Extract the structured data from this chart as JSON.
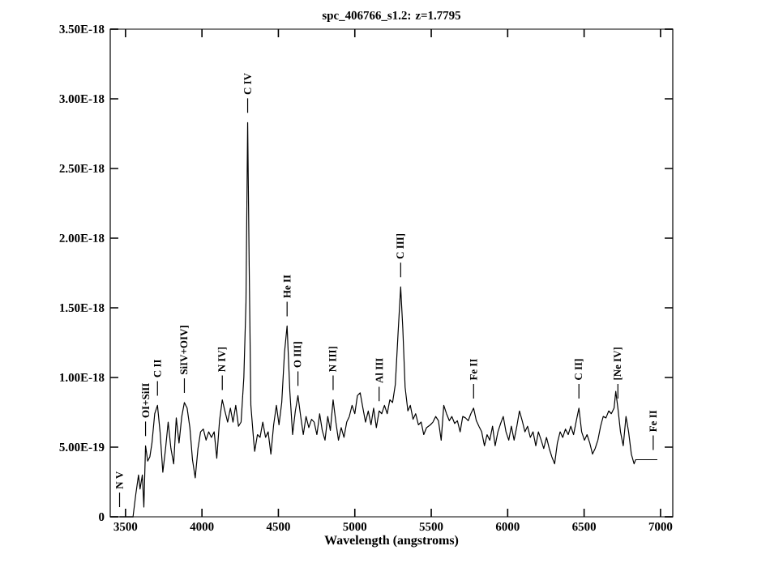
{
  "chart_data": {
    "type": "line",
    "title": "spc_406766_s1.2: z=1.7795",
    "xlabel": "Wavelength (angstroms)",
    "xlim": [
      3400,
      7080
    ],
    "ylim": [
      0,
      3.5e-18
    ],
    "xticks": [
      3500,
      4000,
      4500,
      5000,
      5500,
      6000,
      6500,
      7000
    ],
    "yticks": [
      0,
      {
        "value": 5e-19,
        "label": "5.00E-19"
      },
      {
        "value": 1e-18,
        "label": "1.00E-18"
      },
      {
        "value": 1.5e-18,
        "label": "1.50E-18"
      },
      {
        "value": 2e-18,
        "label": "2.00E-18"
      },
      {
        "value": 2.5e-18,
        "label": "2.50E-18"
      },
      {
        "value": 3e-18,
        "label": "3.00E-18"
      },
      {
        "value": 3.5e-18,
        "label": "3.50E-18"
      }
    ],
    "grid": false,
    "series": [
      {
        "color": "#000000",
        "x": [
          3461,
          3549,
          3567,
          3585,
          3595,
          3610,
          3620,
          3631,
          3645,
          3659,
          3673,
          3691,
          3709,
          3726,
          3744,
          3762,
          3779,
          3797,
          3815,
          3832,
          3850,
          3868,
          3885,
          3903,
          3921,
          3938,
          3956,
          3974,
          3991,
          4009,
          4027,
          4044,
          4062,
          4080,
          4097,
          4115,
          4133,
          4150,
          4168,
          4186,
          4203,
          4221,
          4239,
          4256,
          4274,
          4288,
          4299,
          4309,
          4320,
          4338,
          4345,
          4363,
          4380,
          4398,
          4416,
          4433,
          4451,
          4469,
          4487,
          4504,
          4522,
          4540,
          4557,
          4575,
          4593,
          4611,
          4628,
          4646,
          4663,
          4681,
          4699,
          4717,
          4734,
          4752,
          4770,
          4787,
          4805,
          4823,
          4840,
          4858,
          4876,
          4893,
          4911,
          4929,
          4947,
          4964,
          4982,
          5000,
          5017,
          5035,
          5053,
          5070,
          5088,
          5106,
          5123,
          5141,
          5159,
          5176,
          5194,
          5212,
          5229,
          5247,
          5265,
          5283,
          5300,
          5314,
          5329,
          5347,
          5363,
          5381,
          5398,
          5416,
          5434,
          5451,
          5469,
          5494,
          5511,
          5529,
          5547,
          5565,
          5582,
          5600,
          5618,
          5635,
          5653,
          5671,
          5689,
          5706,
          5724,
          5742,
          5759,
          5777,
          5795,
          5812,
          5830,
          5848,
          5865,
          5883,
          5901,
          5918,
          5936,
          5954,
          5971,
          5989,
          6007,
          6024,
          6042,
          6060,
          6077,
          6095,
          6113,
          6130,
          6148,
          6166,
          6184,
          6201,
          6219,
          6236,
          6254,
          6272,
          6289,
          6307,
          6325,
          6343,
          6360,
          6378,
          6396,
          6413,
          6431,
          6449,
          6466,
          6484,
          6502,
          6519,
          6537,
          6555,
          6572,
          6590,
          6608,
          6625,
          6643,
          6661,
          6678,
          6696,
          6707,
          6721,
          6738,
          6756,
          6774,
          6791,
          6809,
          6827,
          6837,
          6855,
          6979
        ],
        "values": [
          0,
          0,
          1.6e-19,
          3e-19,
          2e-19,
          3e-19,
          7e-20,
          5.1e-19,
          4e-19,
          4.3e-19,
          5.3e-19,
          7.4e-19,
          8e-19,
          6.1e-19,
          3.2e-19,
          4.9e-19,
          6.8e-19,
          4.9e-19,
          3.8e-19,
          7.1e-19,
          5.3e-19,
          7.2e-19,
          8.2e-19,
          7.8e-19,
          6.4e-19,
          4.1e-19,
          2.8e-19,
          4.9e-19,
          6.1e-19,
          6.3e-19,
          5.5e-19,
          6.1e-19,
          5.7e-19,
          6.1e-19,
          4.2e-19,
          6.9e-19,
          8.4e-19,
          7.6e-19,
          6.8e-19,
          7.8e-19,
          6.8e-19,
          8e-19,
          6.5e-19,
          6.8e-19,
          1e-18,
          1.54e-18,
          2.83e-18,
          1.8e-18,
          8e-19,
          5.5e-19,
          4.7e-19,
          5.9e-19,
          5.7e-19,
          6.8e-19,
          5.7e-19,
          6.1e-19,
          4.5e-19,
          6.6e-19,
          8e-19,
          6.6e-19,
          8.2e-19,
          1.18e-18,
          1.37e-18,
          9e-19,
          5.9e-19,
          7.6e-19,
          8.7e-19,
          7.2e-19,
          5.9e-19,
          7.2e-19,
          6.4e-19,
          7e-19,
          6.8e-19,
          5.9e-19,
          7.4e-19,
          6.2e-19,
          5.5e-19,
          7.2e-19,
          6.2e-19,
          8.4e-19,
          6.8e-19,
          5.5e-19,
          6.4e-19,
          5.7e-19,
          6.8e-19,
          7.2e-19,
          8e-19,
          7.4e-19,
          8.7e-19,
          8.9e-19,
          7.8e-19,
          6.8e-19,
          7.6e-19,
          6.6e-19,
          7.8e-19,
          6.4e-19,
          7.6e-19,
          7.4e-19,
          8e-19,
          7.4e-19,
          8.4e-19,
          8.2e-19,
          9.5e-19,
          1.32e-18,
          1.65e-18,
          1.35e-18,
          9.3e-19,
          7.6e-19,
          8e-19,
          7e-19,
          7.4e-19,
          6.6e-19,
          6.8e-19,
          5.9e-19,
          6.4e-19,
          6.6e-19,
          6.8e-19,
          7.2e-19,
          6.9e-19,
          5.5e-19,
          8e-19,
          7.4e-19,
          6.9e-19,
          7.2e-19,
          6.7e-19,
          6.9e-19,
          6.1e-19,
          7.2e-19,
          7.1e-19,
          6.9e-19,
          7.4e-19,
          7.8e-19,
          6.9e-19,
          6.5e-19,
          6.1e-19,
          5.1e-19,
          5.9e-19,
          5.5e-19,
          6.5e-19,
          5.1e-19,
          6.1e-19,
          6.7e-19,
          7.2e-19,
          6.1e-19,
          5.5e-19,
          6.5e-19,
          5.5e-19,
          6.5e-19,
          7.6e-19,
          6.9e-19,
          6.1e-19,
          6.5e-19,
          5.7e-19,
          6.1e-19,
          5.1e-19,
          6.1e-19,
          5.5e-19,
          4.9e-19,
          5.7e-19,
          4.9e-19,
          4.3e-19,
          3.8e-19,
          5.3e-19,
          6.1e-19,
          5.7e-19,
          6.3e-19,
          5.9e-19,
          6.5e-19,
          5.9e-19,
          6.9e-19,
          7.8e-19,
          6.1e-19,
          5.5e-19,
          5.9e-19,
          5.3e-19,
          4.5e-19,
          4.9e-19,
          5.5e-19,
          6.5e-19,
          7.2e-19,
          7.1e-19,
          7.6e-19,
          7.4e-19,
          7.8e-19,
          9e-19,
          7.8e-19,
          6.1e-19,
          5.1e-19,
          7.2e-19,
          6.1e-19,
          4.5e-19,
          3.8e-19,
          4.1e-19,
          4.1e-19,
          4.1e-19
        ]
      }
    ],
    "annotations": [
      {
        "text": "N V",
        "x": 3461,
        "y": 0
      },
      {
        "text": "OI+SiII",
        "x": 3631,
        "y": 5.1e-19
      },
      {
        "text": "C II",
        "x": 3709,
        "y": 8e-19
      },
      {
        "text": "SiIV+OIV]",
        "x": 3885,
        "y": 8.2e-19
      },
      {
        "text": "N IV]",
        "x": 4133,
        "y": 8.4e-19
      },
      {
        "text": "C IV",
        "x": 4299,
        "y": 2.83e-18
      },
      {
        "text": "He II",
        "x": 4557,
        "y": 1.37e-18
      },
      {
        "text": "O III]",
        "x": 4628,
        "y": 8.7e-19
      },
      {
        "text": "N III]",
        "x": 4858,
        "y": 8.4e-19
      },
      {
        "text": "Al III",
        "x": 5159,
        "y": 7.6e-19
      },
      {
        "text": "C III]",
        "x": 5300,
        "y": 1.65e-18
      },
      {
        "text": "Fe II",
        "x": 5777,
        "y": 7.8e-19
      },
      {
        "text": "C II]",
        "x": 6466,
        "y": 7.8e-19
      },
      {
        "text": "[Ne IV]",
        "x": 6721,
        "y": 7.8e-19
      },
      {
        "text": "Fe II",
        "x": 6952,
        "y": 4.1e-19
      }
    ]
  }
}
